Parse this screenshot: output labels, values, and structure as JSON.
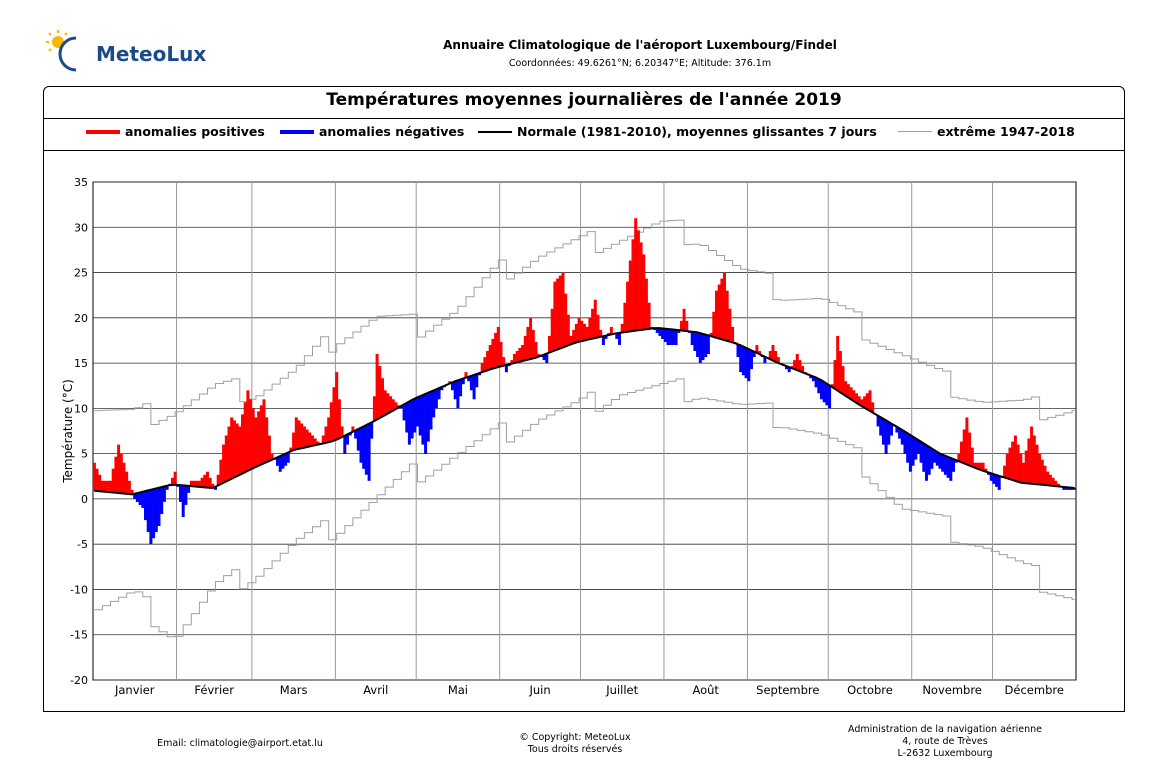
{
  "header": {
    "logo_text": "MeteoLux",
    "title": "Annuaire Climatologique de l'aéroport Luxembourg/Findel",
    "subtitle": "Coordonnées: 49.6261°N; 6.20347°E; Altitude: 376.1m"
  },
  "legend": {
    "positive": "anomalies positives",
    "negative": "anomalies négatives",
    "normal": "Normale (1981-2010), moyennes glissantes 7 jours",
    "extreme": "extrême 1947-2018"
  },
  "colors": {
    "positive": "#ff0000",
    "negative": "#0000ff",
    "normal": "#000000",
    "extreme": "#a0a0a0"
  },
  "chart_data": {
    "type": "bar",
    "title": "Températures moyennes journalières de l'année 2019",
    "ylabel": "Température (°C)",
    "ylim": [
      -20,
      35
    ],
    "yticks": [
      -20,
      -15,
      -10,
      -5,
      0,
      5,
      10,
      15,
      20,
      25,
      30,
      35
    ],
    "months": [
      "Janvier",
      "Février",
      "Mars",
      "Avril",
      "Mai",
      "Juin",
      "Juillet",
      "Août",
      "Septembre",
      "Octobre",
      "Novembre",
      "Décembre"
    ],
    "month_days": [
      31,
      28,
      31,
      30,
      31,
      30,
      31,
      31,
      30,
      31,
      30,
      31
    ],
    "grid": true,
    "x_unit": "day of year",
    "normal_series": {
      "x": [
        1,
        15,
        30,
        45,
        60,
        75,
        90,
        105,
        120,
        135,
        150,
        165,
        180,
        195,
        210,
        225,
        240,
        255,
        270,
        285,
        300,
        315,
        330,
        345,
        365
      ],
      "y": [
        0.9,
        0.5,
        1.6,
        1.2,
        3.4,
        5.4,
        6.4,
        8.6,
        11.1,
        13.0,
        14.5,
        15.6,
        17.3,
        18.3,
        18.9,
        18.4,
        17.1,
        15.0,
        13.3,
        10.4,
        7.8,
        5.0,
        3.2,
        1.8,
        1.2
      ]
    },
    "extreme_max_series": {
      "x": [
        1,
        15,
        30,
        45,
        60,
        75,
        90,
        105,
        120,
        135,
        150,
        165,
        180,
        195,
        210,
        225,
        240,
        255,
        270,
        285,
        300,
        315,
        330,
        345,
        365
      ],
      "y": [
        10,
        9,
        10,
        12,
        12,
        14,
        18,
        20,
        19,
        21,
        25,
        27,
        28,
        29,
        30,
        29,
        25,
        23,
        22,
        19,
        16,
        13,
        11,
        10,
        10
      ]
    },
    "extreme_min_series": {
      "x": [
        1,
        15,
        30,
        45,
        60,
        75,
        90,
        105,
        120,
        135,
        150,
        165,
        180,
        195,
        210,
        225,
        240,
        255,
        270,
        285,
        300,
        315,
        330,
        345,
        365
      ],
      "y": [
        -12,
        -11,
        -15,
        -10,
        -8,
        -5,
        -3,
        0,
        3,
        5,
        7,
        9,
        10,
        12,
        12,
        12,
        10,
        9,
        7,
        4,
        -1,
        -3,
        -5,
        -8,
        -11
      ]
    },
    "daily_series": {
      "x": [
        1,
        4,
        7,
        10,
        13,
        16,
        19,
        22,
        25,
        28,
        31,
        34,
        37,
        40,
        43,
        46,
        49,
        52,
        55,
        58,
        61,
        64,
        67,
        70,
        73,
        76,
        79,
        82,
        85,
        88,
        91,
        94,
        97,
        100,
        103,
        106,
        109,
        112,
        115,
        118,
        121,
        124,
        127,
        130,
        133,
        136,
        139,
        142,
        145,
        148,
        151,
        154,
        157,
        160,
        163,
        166,
        169,
        172,
        175,
        178,
        181,
        184,
        187,
        190,
        193,
        196,
        199,
        202,
        205,
        208,
        211,
        214,
        217,
        220,
        223,
        226,
        229,
        232,
        235,
        238,
        241,
        244,
        247,
        250,
        253,
        256,
        259,
        262,
        265,
        268,
        271,
        274,
        277,
        280,
        283,
        286,
        289,
        292,
        295,
        298,
        301,
        304,
        307,
        310,
        313,
        316,
        319,
        322,
        325,
        328,
        331,
        334,
        337,
        340,
        343,
        346,
        349,
        352,
        355,
        358,
        361,
        364
      ],
      "y": [
        4,
        2,
        2,
        6,
        3,
        0,
        -1,
        -5,
        -3,
        1,
        3,
        -2,
        2,
        2,
        3,
        1,
        6,
        9,
        8,
        12,
        9,
        11,
        5,
        3,
        4,
        9,
        8,
        7,
        6,
        9,
        14,
        5,
        8,
        4,
        2,
        16,
        12,
        11,
        10,
        6,
        8,
        5,
        9,
        12,
        13,
        10,
        14,
        11,
        15,
        17,
        19,
        14,
        16,
        17,
        20,
        16,
        15,
        24,
        25,
        18,
        20,
        19,
        22,
        17,
        19,
        17,
        24,
        31,
        27,
        19,
        18,
        17,
        17,
        21,
        17,
        15,
        16,
        23,
        25,
        19,
        14,
        13,
        17,
        15,
        17,
        15,
        14,
        16,
        14,
        13,
        11,
        10,
        18,
        13,
        12,
        11,
        12,
        8,
        5,
        8,
        6,
        3,
        5,
        2,
        4,
        3,
        2,
        5,
        9,
        4,
        4,
        2,
        1,
        5,
        7,
        4,
        8,
        5,
        3,
        2,
        1,
        1
      ]
    }
  },
  "footer": {
    "email": "Email: climatologie@airport.etat.lu",
    "copyright_1": "© Copyright: MeteoLux",
    "copyright_2": "Tous droits réservés",
    "addr_1": "Administration de la navigation aérienne",
    "addr_2": "4, route de Trèves",
    "addr_3": "L-2632 Luxembourg"
  }
}
